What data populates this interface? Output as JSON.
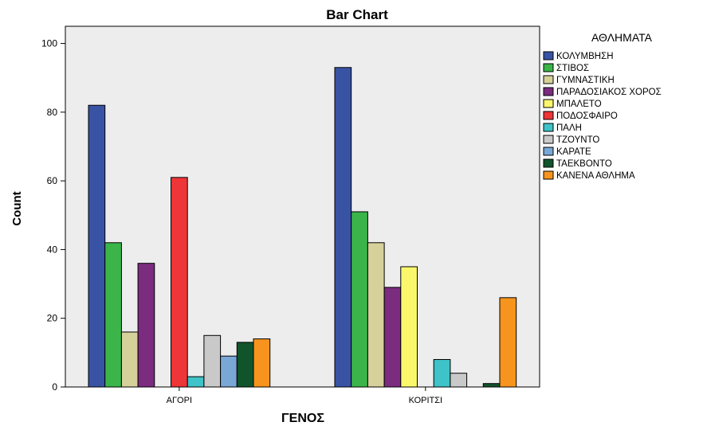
{
  "chart_data": {
    "type": "bar",
    "title": "Bar Chart",
    "xlabel": "ΓΕΝΟΣ",
    "ylabel": "Count",
    "ylim": [
      0,
      105
    ],
    "yticks": [
      0,
      20,
      40,
      60,
      80,
      100
    ],
    "categories": [
      "ΑΓΟΡΙ",
      "ΚΟΡΙΤΣΙ"
    ],
    "legend_title": "ΑΘΛΗΜΑΤΑ",
    "legend_position": "right",
    "grid": false,
    "series": [
      {
        "name": "ΚΟΛΥΜΒΗΣΗ",
        "color": "#3953a4",
        "values": [
          82,
          93
        ]
      },
      {
        "name": "ΣΤΙΒΟΣ",
        "color": "#3bb54a",
        "values": [
          42,
          51
        ]
      },
      {
        "name": "ΓΥΜΝΑΣΤΙΚΗ",
        "color": "#d6d19a",
        "values": [
          16,
          42
        ]
      },
      {
        "name": "ΠΑΡΑΔΟΣΙΑΚΟΣ ΧΟΡΟΣ",
        "color": "#7b2c7f",
        "values": [
          36,
          29
        ]
      },
      {
        "name": "ΜΠΑΛΕΤΟ",
        "color": "#fbf76c",
        "values": [
          0,
          35
        ]
      },
      {
        "name": "ΠΟΔΟΣΦΑΙΡΟ",
        "color": "#ee3537",
        "values": [
          61,
          0
        ]
      },
      {
        "name": "ΠΑΛΗ",
        "color": "#3ec3c8",
        "values": [
          3,
          8
        ]
      },
      {
        "name": "ΤΖΟΥΝΤΟ",
        "color": "#c9c9c9",
        "values": [
          15,
          4
        ]
      },
      {
        "name": "ΚΑΡΑΤΕ",
        "color": "#79a7d6",
        "values": [
          9,
          0
        ]
      },
      {
        "name": "ΤΑΕΚΒΟΝΤΟ",
        "color": "#11542b",
        "values": [
          13,
          1
        ]
      },
      {
        "name": "ΚΑΝΕΝΑ ΑΘΛΗΜΑ",
        "color": "#f7941d",
        "values": [
          14,
          26
        ]
      }
    ]
  },
  "colors": {
    "plot_background": "#ededed",
    "frame": "#000000"
  }
}
